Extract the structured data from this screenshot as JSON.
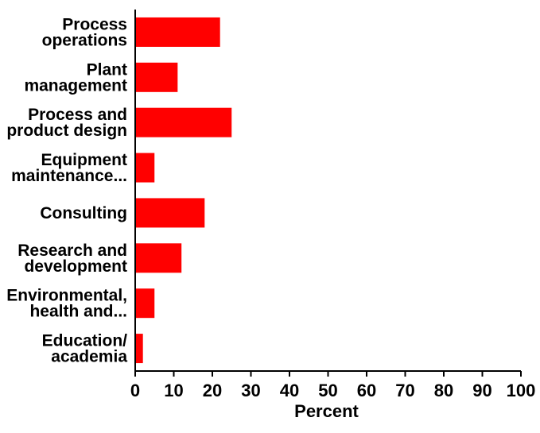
{
  "chart_data": {
    "type": "bar",
    "orientation": "horizontal",
    "title": "",
    "xlabel": "Percent",
    "ylabel": "",
    "categories": [
      [
        "Process",
        "operations"
      ],
      [
        "Plant",
        "management"
      ],
      [
        "Process and",
        "product design"
      ],
      [
        "Equipment",
        "maintenance..."
      ],
      [
        "Consulting"
      ],
      [
        "Research and",
        "development"
      ],
      [
        "Environmental,",
        "health and..."
      ],
      [
        "Education/",
        "academia"
      ]
    ],
    "values": [
      22,
      11,
      25,
      5,
      18,
      12,
      5,
      2
    ],
    "xlim": [
      0,
      100
    ],
    "xticks": [
      "0",
      "10",
      "20",
      "30",
      "40",
      "50",
      "60",
      "70",
      "80",
      "90",
      "100"
    ],
    "grid": false,
    "legend": "none",
    "bar_color": "#ff0000"
  }
}
